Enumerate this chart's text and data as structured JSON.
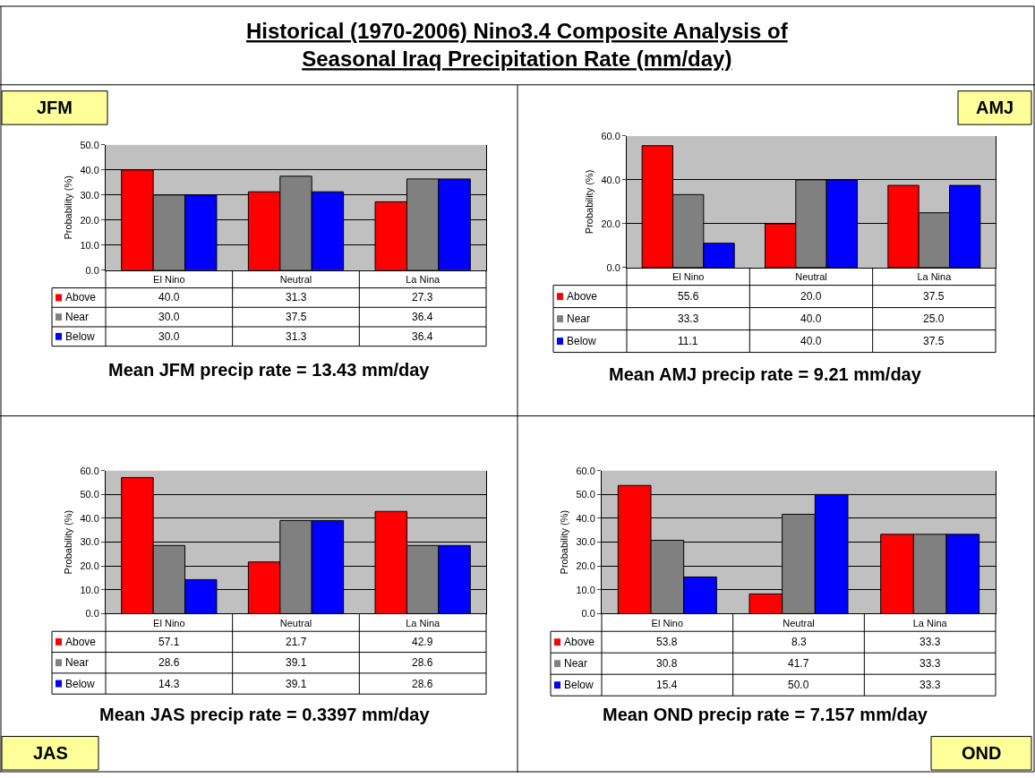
{
  "chart_data": [
    {
      "type": "bar",
      "title": "Historical (1970-2006) Nino3.4 Composite Analysis of\nSeasonal Iraq Precipitation Rate (mm/day)",
      "ylabel": "Probability (%)",
      "categories": [
        "El Nino",
        "Neutral",
        "La Nina"
      ],
      "series": [
        {
          "name": "Above",
          "color": "#ff0000",
          "values": [
            40.0,
            31.3,
            27.3
          ],
          "value_labels": [
            "40.0",
            "31.3",
            "27.3"
          ]
        },
        {
          "name": "Near",
          "color": "#808080",
          "values": [
            30.0,
            37.5,
            36.4
          ],
          "value_labels": [
            "30.0",
            "37.5",
            "36.4"
          ]
        },
        {
          "name": "Below",
          "color": "#0000ff",
          "values": [
            30.0,
            31.3,
            36.4
          ],
          "value_labels": [
            "30.0",
            "31.3",
            "36.4"
          ]
        }
      ],
      "ylim": [
        0,
        50
      ],
      "yticks": [
        {
          "value": 0,
          "label": "0.0"
        },
        {
          "value": 10,
          "label": "10.0"
        },
        {
          "value": 20,
          "label": "20.0"
        },
        {
          "value": 30,
          "label": "30.0"
        },
        {
          "value": 40,
          "label": "40.0"
        },
        {
          "value": 50,
          "label": "50.0"
        }
      ],
      "grid": "y",
      "legend": "bottom left",
      "annotations": [
        "JFM",
        "Mean JFM precip rate = 13.43 mm/day"
      ]
    },
    {
      "type": "bar",
      "ylabel": "Probability (%)",
      "categories": [
        "El Nino",
        "Neutral",
        "La Nina"
      ],
      "series": [
        {
          "name": "Above",
          "color": "#ff0000",
          "values": [
            55.6,
            20.0,
            37.5
          ],
          "value_labels": [
            "55.6",
            "20.0",
            "37.5"
          ]
        },
        {
          "name": "Near",
          "color": "#808080",
          "values": [
            33.3,
            40.0,
            25.0
          ],
          "value_labels": [
            "33.3",
            "40.0",
            "25.0"
          ]
        },
        {
          "name": "Below",
          "color": "#0000ff",
          "values": [
            11.1,
            40.0,
            37.5
          ],
          "value_labels": [
            "11.1",
            "40.0",
            "37.5"
          ]
        }
      ],
      "ylim": [
        0,
        60
      ],
      "yticks": [
        {
          "value": 0,
          "label": "0.0"
        },
        {
          "value": 20,
          "label": "20.0"
        },
        {
          "value": 40,
          "label": "40.0"
        },
        {
          "value": 60,
          "label": "60.0"
        }
      ],
      "grid": "y",
      "legend": "bottom left",
      "annotations": [
        "AMJ",
        "Mean AMJ precip rate = 9.21 mm/day"
      ]
    },
    {
      "type": "bar",
      "ylabel": "Probability (%)",
      "categories": [
        "El Nino",
        "Neutral",
        "La Nina"
      ],
      "series": [
        {
          "name": "Above",
          "color": "#ff0000",
          "values": [
            57.1,
            21.7,
            42.9
          ],
          "value_labels": [
            "57.1",
            "21.7",
            "42.9"
          ]
        },
        {
          "name": "Near",
          "color": "#808080",
          "values": [
            28.6,
            39.1,
            28.6
          ],
          "value_labels": [
            "28.6",
            "39.1",
            "28.6"
          ]
        },
        {
          "name": "Below",
          "color": "#0000ff",
          "values": [
            14.3,
            39.1,
            28.6
          ],
          "value_labels": [
            "14.3",
            "39.1",
            "28.6"
          ]
        }
      ],
      "ylim": [
        0,
        60
      ],
      "yticks": [
        {
          "value": 0,
          "label": "0.0"
        },
        {
          "value": 10,
          "label": "10.0"
        },
        {
          "value": 20,
          "label": "20.0"
        },
        {
          "value": 30,
          "label": "30.0"
        },
        {
          "value": 40,
          "label": "40.0"
        },
        {
          "value": 50,
          "label": "50.0"
        },
        {
          "value": 60,
          "label": "60.0"
        }
      ],
      "grid": "y",
      "legend": "bottom left",
      "annotations": [
        "JAS",
        "Mean JAS precip rate = 0.3397 mm/day"
      ]
    },
    {
      "type": "bar",
      "ylabel": "Probability (%)",
      "categories": [
        "El Nino",
        "Neutral",
        "La Nina"
      ],
      "series": [
        {
          "name": "Above",
          "color": "#ff0000",
          "values": [
            53.8,
            8.3,
            33.3
          ],
          "value_labels": [
            "53.8",
            "8.3",
            "33.3"
          ]
        },
        {
          "name": "Near",
          "color": "#808080",
          "values": [
            30.8,
            41.7,
            33.3
          ],
          "value_labels": [
            "30.8",
            "41.7",
            "33.3"
          ]
        },
        {
          "name": "Below",
          "color": "#0000ff",
          "values": [
            15.4,
            50.0,
            33.3
          ],
          "value_labels": [
            "15.4",
            "50.0",
            "33.3"
          ]
        }
      ],
      "ylim": [
        0,
        60
      ],
      "yticks": [
        {
          "value": 0,
          "label": "0.0"
        },
        {
          "value": 10,
          "label": "10.0"
        },
        {
          "value": 20,
          "label": "20.0"
        },
        {
          "value": 30,
          "label": "30.0"
        },
        {
          "value": 40,
          "label": "40.0"
        },
        {
          "value": 50,
          "label": "50.0"
        },
        {
          "value": 60,
          "label": "60.0"
        }
      ],
      "grid": "y",
      "legend": "bottom left",
      "annotations": [
        "OND",
        "Mean OND precip rate = 7.157 mm/day"
      ]
    }
  ]
}
